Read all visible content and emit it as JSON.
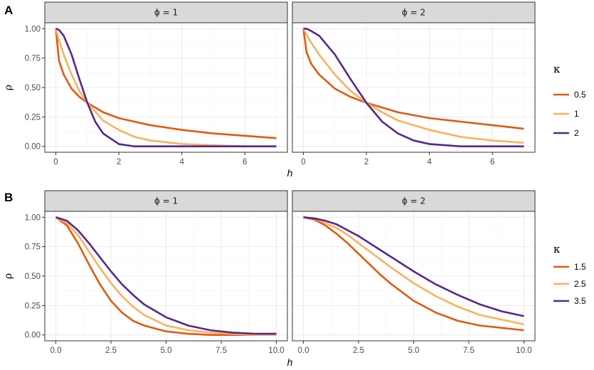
{
  "colors": {
    "series": [
      "#e05a10",
      "#fbb15c",
      "#55288f"
    ]
  },
  "chart_data": [
    {
      "type": "line",
      "panel_label": "A",
      "xlabel": "h",
      "ylabel": "ρ",
      "xlim": [
        0,
        7
      ],
      "ylim": [
        0,
        1
      ],
      "x_ticks": [
        0,
        2,
        4,
        6
      ],
      "x_tick_labels": [
        "0",
        "2",
        "4",
        "6"
      ],
      "y_ticks": [
        0,
        0.25,
        0.5,
        0.75,
        1
      ],
      "y_tick_labels": [
        "0.00",
        "0.25",
        "0.50",
        "0.75",
        "1.00"
      ],
      "grid": true,
      "legend_title": "κ",
      "legend_position": "right",
      "facets": [
        {
          "strip": "ϕ = 1",
          "series": [
            {
              "name": "0.5",
              "x": [
                0,
                0.1,
                0.25,
                0.5,
                0.75,
                1,
                1.5,
                2,
                2.5,
                3,
                4,
                5,
                6,
                7
              ],
              "y": [
                1.0,
                0.73,
                0.61,
                0.49,
                0.42,
                0.37,
                0.29,
                0.24,
                0.21,
                0.18,
                0.14,
                0.11,
                0.09,
                0.07
              ]
            },
            {
              "name": "1",
              "x": [
                0,
                0.1,
                0.25,
                0.5,
                0.75,
                1,
                1.5,
                2,
                2.5,
                3,
                4,
                5,
                6,
                7
              ],
              "y": [
                1.0,
                0.9,
                0.78,
                0.61,
                0.47,
                0.37,
                0.22,
                0.14,
                0.08,
                0.05,
                0.02,
                0.01,
                0.0,
                0.0
              ]
            },
            {
              "name": "2",
              "x": [
                0,
                0.1,
                0.25,
                0.5,
                0.75,
                1,
                1.25,
                1.5,
                2,
                2.5,
                3,
                4,
                5,
                6,
                7
              ],
              "y": [
                1.0,
                0.99,
                0.94,
                0.78,
                0.57,
                0.37,
                0.21,
                0.11,
                0.02,
                0.0,
                0.0,
                0.0,
                0.0,
                0.0,
                0.0
              ]
            }
          ]
        },
        {
          "strip": "ϕ = 2",
          "series": [
            {
              "name": "0.5",
              "x": [
                0,
                0.1,
                0.25,
                0.5,
                1,
                1.5,
                2,
                2.5,
                3,
                4,
                5,
                6,
                7
              ],
              "y": [
                1.0,
                0.8,
                0.7,
                0.61,
                0.49,
                0.42,
                0.37,
                0.33,
                0.29,
                0.24,
                0.21,
                0.18,
                0.15
              ]
            },
            {
              "name": "1",
              "x": [
                0,
                0.1,
                0.25,
                0.5,
                1,
                1.5,
                2,
                2.5,
                3,
                4,
                5,
                6,
                7
              ],
              "y": [
                1.0,
                0.95,
                0.88,
                0.78,
                0.61,
                0.47,
                0.37,
                0.29,
                0.22,
                0.14,
                0.08,
                0.05,
                0.03
              ]
            },
            {
              "name": "2",
              "x": [
                0,
                0.1,
                0.25,
                0.5,
                1,
                1.5,
                2,
                2.5,
                3,
                3.5,
                4,
                5,
                6,
                7
              ],
              "y": [
                1.0,
                1.0,
                0.98,
                0.94,
                0.78,
                0.57,
                0.37,
                0.21,
                0.11,
                0.05,
                0.02,
                0.0,
                0.0,
                0.0
              ]
            }
          ]
        }
      ]
    },
    {
      "type": "line",
      "panel_label": "B",
      "xlabel": "h",
      "ylabel": "ρ",
      "xlim": [
        0,
        10
      ],
      "ylim": [
        0,
        1
      ],
      "x_ticks": [
        0,
        2.5,
        5,
        7.5,
        10
      ],
      "x_tick_labels": [
        "0.0",
        "2.5",
        "5.0",
        "7.5",
        "10.0"
      ],
      "y_ticks": [
        0,
        0.25,
        0.5,
        0.75,
        1
      ],
      "y_tick_labels": [
        "0.00",
        "0.25",
        "0.50",
        "0.75",
        "1.00"
      ],
      "grid": true,
      "legend_title": "κ",
      "legend_position": "right",
      "facets": [
        {
          "strip": "ϕ = 1",
          "series": [
            {
              "name": "1.5",
              "x": [
                0,
                0.5,
                1,
                1.5,
                2,
                2.5,
                3,
                3.5,
                4,
                5,
                6,
                7,
                8,
                9,
                10
              ],
              "y": [
                1.0,
                0.93,
                0.78,
                0.6,
                0.43,
                0.29,
                0.19,
                0.12,
                0.08,
                0.03,
                0.01,
                0.0,
                0.0,
                0.0,
                0.0
              ]
            },
            {
              "name": "2.5",
              "x": [
                0,
                0.5,
                1,
                1.5,
                2,
                2.5,
                3,
                3.5,
                4,
                5,
                6,
                7,
                8,
                9,
                10
              ],
              "y": [
                1.0,
                0.95,
                0.85,
                0.71,
                0.57,
                0.44,
                0.33,
                0.24,
                0.17,
                0.08,
                0.04,
                0.02,
                0.01,
                0.0,
                0.0
              ]
            },
            {
              "name": "3.5",
              "x": [
                0,
                0.5,
                1,
                1.5,
                2,
                2.5,
                3,
                3.5,
                4,
                5,
                6,
                7,
                8,
                9,
                10
              ],
              "y": [
                1.0,
                0.97,
                0.89,
                0.78,
                0.66,
                0.54,
                0.43,
                0.34,
                0.26,
                0.15,
                0.08,
                0.04,
                0.02,
                0.01,
                0.01
              ]
            }
          ]
        },
        {
          "strip": "ϕ = 2",
          "series": [
            {
              "name": "1.5",
              "x": [
                0,
                0.5,
                1,
                1.5,
                2,
                2.5,
                3,
                3.5,
                4,
                5,
                6,
                7,
                8,
                9,
                10
              ],
              "y": [
                1.0,
                0.98,
                0.93,
                0.86,
                0.78,
                0.69,
                0.6,
                0.51,
                0.43,
                0.29,
                0.19,
                0.12,
                0.08,
                0.06,
                0.04
              ]
            },
            {
              "name": "2.5",
              "x": [
                0,
                0.5,
                1,
                1.5,
                2,
                2.5,
                3,
                3.5,
                4,
                5,
                6,
                7,
                8,
                9,
                10
              ],
              "y": [
                1.0,
                0.99,
                0.95,
                0.91,
                0.85,
                0.78,
                0.71,
                0.64,
                0.57,
                0.44,
                0.33,
                0.24,
                0.17,
                0.13,
                0.09
              ]
            },
            {
              "name": "3.5",
              "x": [
                0,
                0.5,
                1,
                1.5,
                2,
                2.5,
                3,
                3.5,
                4,
                5,
                6,
                7,
                8,
                9,
                10
              ],
              "y": [
                1.0,
                0.99,
                0.97,
                0.94,
                0.89,
                0.84,
                0.78,
                0.72,
                0.66,
                0.54,
                0.43,
                0.34,
                0.26,
                0.2,
                0.16
              ]
            }
          ]
        }
      ]
    }
  ]
}
